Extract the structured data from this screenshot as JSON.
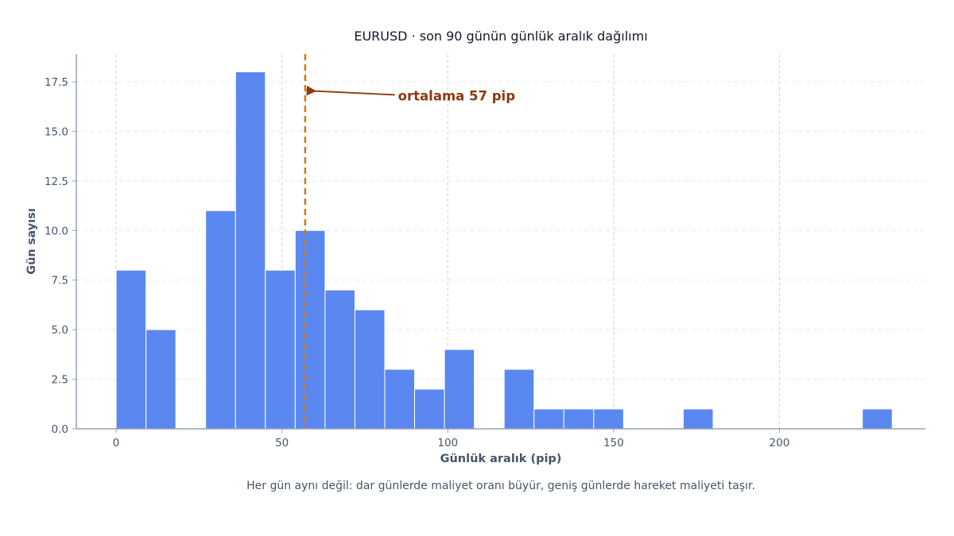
{
  "chart_data": {
    "type": "bar",
    "title": "EURUSD · son 90 günün günlük aralık dağılımı",
    "xlabel": "Günlük aralık (pip)",
    "ylabel": "Gün sayısı",
    "caption": "Her gün aynı değil: dar günlerde maliyet oranı büyür, geniş günlerde hareket maliyeti taşır.",
    "xlim": [
      -12,
      244
    ],
    "ylim": [
      0,
      18.9
    ],
    "xticks": [
      0,
      50,
      100,
      150,
      200
    ],
    "yticks": [
      0,
      2.5,
      5,
      7.5,
      10,
      12.5,
      15,
      17.5
    ],
    "xtick_labels": [
      "0",
      "50",
      "100",
      "150",
      "200"
    ],
    "ytick_labels": [
      "0.0",
      "2.5",
      "5.0",
      "7.5",
      "10.0",
      "12.5",
      "15.0",
      "17.5"
    ],
    "grid": true,
    "bins": [
      {
        "x0": 0,
        "x1": 9,
        "count": 8
      },
      {
        "x0": 9,
        "x1": 18,
        "count": 5
      },
      {
        "x0": 18,
        "x1": 27,
        "count": 0
      },
      {
        "x0": 27,
        "x1": 36,
        "count": 11
      },
      {
        "x0": 36,
        "x1": 45,
        "count": 18
      },
      {
        "x0": 45,
        "x1": 54,
        "count": 8
      },
      {
        "x0": 54,
        "x1": 63,
        "count": 10
      },
      {
        "x0": 63,
        "x1": 72,
        "count": 7
      },
      {
        "x0": 72,
        "x1": 81,
        "count": 6
      },
      {
        "x0": 81,
        "x1": 90,
        "count": 3
      },
      {
        "x0": 90,
        "x1": 99,
        "count": 2
      },
      {
        "x0": 99,
        "x1": 108,
        "count": 4
      },
      {
        "x0": 108,
        "x1": 117,
        "count": 0
      },
      {
        "x0": 117,
        "x1": 126,
        "count": 3
      },
      {
        "x0": 126,
        "x1": 135,
        "count": 1
      },
      {
        "x0": 135,
        "x1": 144,
        "count": 1
      },
      {
        "x0": 144,
        "x1": 153,
        "count": 1
      },
      {
        "x0": 153,
        "x1": 162,
        "count": 0
      },
      {
        "x0": 162,
        "x1": 171,
        "count": 0
      },
      {
        "x0": 171,
        "x1": 180,
        "count": 1
      },
      {
        "x0": 180,
        "x1": 189,
        "count": 0
      },
      {
        "x0": 189,
        "x1": 198,
        "count": 0
      },
      {
        "x0": 198,
        "x1": 207,
        "count": 0
      },
      {
        "x0": 207,
        "x1": 216,
        "count": 0
      },
      {
        "x0": 216,
        "x1": 225,
        "count": 0
      },
      {
        "x0": 225,
        "x1": 234,
        "count": 1
      }
    ],
    "mean_line": {
      "x": 57,
      "label": "ortalama 57 pip",
      "color": "#d97706"
    },
    "annotation": {
      "text": "ortalama 57 pip",
      "color": "#8b3a0f",
      "arrow_to": [
        57,
        17.05
      ],
      "text_at": [
        85,
        16.8
      ]
    },
    "colors": {
      "bar": "#5b87f0",
      "bar_edge": "#ffffff",
      "axis": "#94a3b8",
      "grid": "#e2e8f0"
    }
  }
}
